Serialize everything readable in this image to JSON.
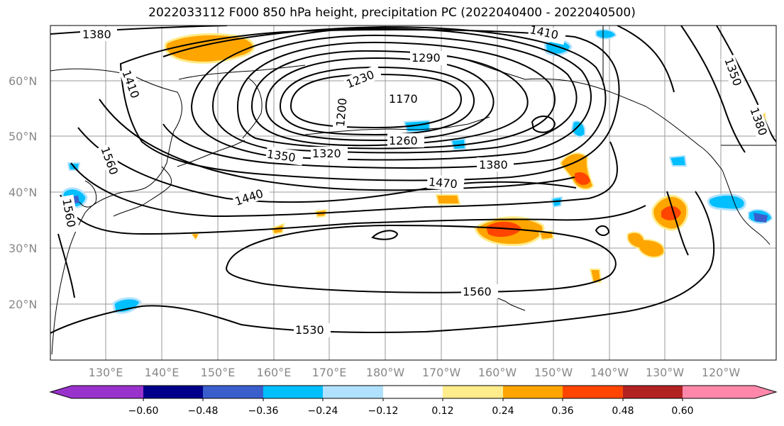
{
  "title": "2022033112 F000 850 hPa height, precipitation PC (2022040400 - 2022040500)",
  "map": {
    "latitude_labels": [
      "60°N",
      "50°N",
      "40°N",
      "30°N",
      "20°N"
    ],
    "longitude_labels": [
      "130°E",
      "140°E",
      "150°E",
      "160°E",
      "170°E",
      "180°W",
      "170°W",
      "160°W",
      "150°W",
      "140°W",
      "130°W",
      "120°W"
    ],
    "contour_labels": [
      "1380",
      "1410",
      "1290",
      "1230",
      "1170",
      "1200",
      "1260",
      "1320",
      "1350",
      "1380",
      "1470",
      "1440",
      "1560",
      "1560",
      "1530",
      "1350",
      "1380",
      "1410",
      "1560"
    ],
    "contour_color": "#000000",
    "coastline_color": "#000000",
    "gridline_color": "#999999"
  },
  "colorbar": {
    "tick_labels": [
      "−0.60",
      "−0.48",
      "−0.36",
      "−0.24",
      "−0.12",
      "0.12",
      "0.24",
      "0.36",
      "0.48",
      "0.60"
    ],
    "colors": [
      "#9932cc",
      "#00008b",
      "#3a5fcd",
      "#00bfff",
      "#b0e2ff",
      "#ffffff",
      "#ffec8b",
      "#ffa500",
      "#ff4500",
      "#b22222",
      "#ff88aa"
    ]
  }
}
